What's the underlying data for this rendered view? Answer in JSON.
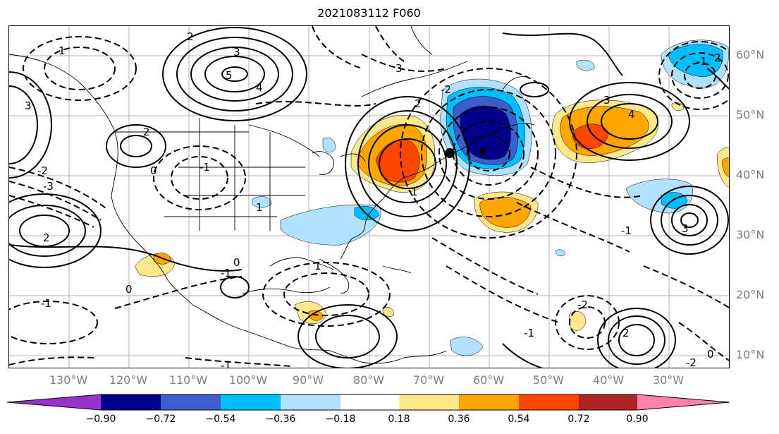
{
  "title": "2021083112 F060",
  "map": {
    "lat_labels": [
      "60°N",
      "50°N",
      "40°N",
      "30°N",
      "20°N",
      "10°N"
    ],
    "lon_labels": [
      "130°W",
      "120°W",
      "110°W",
      "100°W",
      "90°W",
      "80°W",
      "70°W",
      "60°W",
      "50°W",
      "40°W",
      "30°W"
    ],
    "contour_labels": [
      "2",
      "3",
      "4",
      "5",
      "1",
      "2",
      "0",
      "-1",
      "-2",
      "-3",
      "1",
      "-1",
      "0",
      "2",
      "3",
      "1",
      "-2",
      "1",
      "0",
      "-1",
      "2",
      "3",
      "4",
      "-1",
      "-2",
      "3",
      "2",
      "-1",
      "2",
      "-1",
      "0",
      "-2",
      "-1",
      "3"
    ],
    "colors": {
      "coastline": "#000000",
      "gridline": "#b0b0b0",
      "lat_label": "#7f7f7f",
      "lon_label": "#7f7f7f"
    }
  },
  "colorbar": {
    "ticks": [
      "−0.90",
      "−0.72",
      "−0.54",
      "−0.36",
      "−0.18",
      "0.18",
      "0.36",
      "0.54",
      "0.72",
      "0.90"
    ],
    "colors": [
      "#9932cc",
      "#00008b",
      "#3a5fcd",
      "#00bfff",
      "#b0e2ff",
      "#ffffff",
      "#ffe88c",
      "#ffa500",
      "#ff4500",
      "#b22222",
      "#ff82ab"
    ]
  }
}
